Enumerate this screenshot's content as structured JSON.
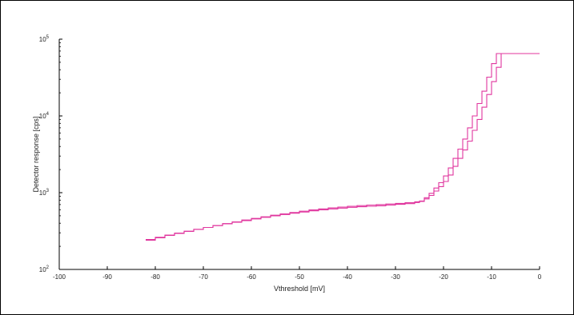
{
  "chart_data": {
    "type": "line",
    "title": "",
    "xlabel": "Vthreshold [mV]",
    "ylabel": "Detector response [cps]",
    "xlim": [
      -100,
      0
    ],
    "ylim": [
      100,
      100000
    ],
    "y_scale": "log",
    "grid": false,
    "x_ticks": [
      -100,
      -90,
      -80,
      -70,
      -60,
      -50,
      -40,
      -30,
      -20,
      -10,
      0
    ],
    "x_tick_labels": [
      "-100",
      "-90",
      "-80",
      "-70",
      "-60",
      "-50",
      "-40",
      "-30",
      "-20",
      "-10",
      "0"
    ],
    "y_ticks": [
      {
        "value": 100,
        "base": "10",
        "exp": "2"
      },
      {
        "value": 1000,
        "base": "10",
        "exp": "3"
      },
      {
        "value": 10000,
        "base": "10",
        "exp": "4"
      },
      {
        "value": 100000,
        "base": "10",
        "exp": "5"
      }
    ],
    "colors": {
      "series": "#e0369e",
      "axis": "#000000"
    },
    "series": [
      {
        "x": [
          -82,
          -80,
          -78,
          -76,
          -74,
          -72,
          -70,
          -68,
          -66,
          -64,
          -62,
          -60,
          -58,
          -56,
          -54,
          -52,
          -50,
          -48,
          -46,
          -44,
          -42,
          -40,
          -38,
          -36,
          -34,
          -32,
          -30,
          -28,
          -26,
          -25,
          -24,
          -23,
          -22,
          -21,
          -20,
          -19,
          -18,
          -17,
          -16,
          -15,
          -14,
          -13,
          -12,
          -11,
          -10,
          -9,
          -8,
          0
        ],
        "y": [
          245,
          262,
          280,
          297,
          315,
          333,
          352,
          372,
          393,
          413,
          433,
          455,
          478,
          500,
          520,
          540,
          560,
          580,
          598,
          615,
          630,
          645,
          655,
          665,
          675,
          690,
          705,
          720,
          745,
          770,
          830,
          920,
          1050,
          1200,
          1400,
          1700,
          2200,
          2800,
          3600,
          4700,
          6500,
          9000,
          13000,
          19000,
          28000,
          43000,
          65000,
          65000
        ]
      },
      {
        "x": [
          -82,
          -80,
          -78,
          -76,
          -74,
          -72,
          -70,
          -68,
          -66,
          -64,
          -62,
          -60,
          -58,
          -56,
          -54,
          -52,
          -50,
          -48,
          -46,
          -44,
          -42,
          -40,
          -38,
          -36,
          -34,
          -32,
          -30,
          -28,
          -26,
          -25,
          -24,
          -23,
          -22,
          -21,
          -20,
          -19,
          -18,
          -17,
          -16,
          -15,
          -14,
          -13,
          -12,
          -11,
          -10,
          -9,
          -8,
          0
        ],
        "y": [
          240,
          258,
          278,
          295,
          313,
          332,
          352,
          373,
          395,
          417,
          440,
          462,
          485,
          508,
          530,
          552,
          573,
          595,
          615,
          633,
          650,
          665,
          678,
          690,
          700,
          712,
          725,
          740,
          760,
          780,
          860,
          980,
          1150,
          1350,
          1650,
          2100,
          2800,
          3700,
          5000,
          7000,
          10000,
          14500,
          21000,
          32000,
          48000,
          65000,
          65000,
          65000
        ]
      }
    ]
  }
}
